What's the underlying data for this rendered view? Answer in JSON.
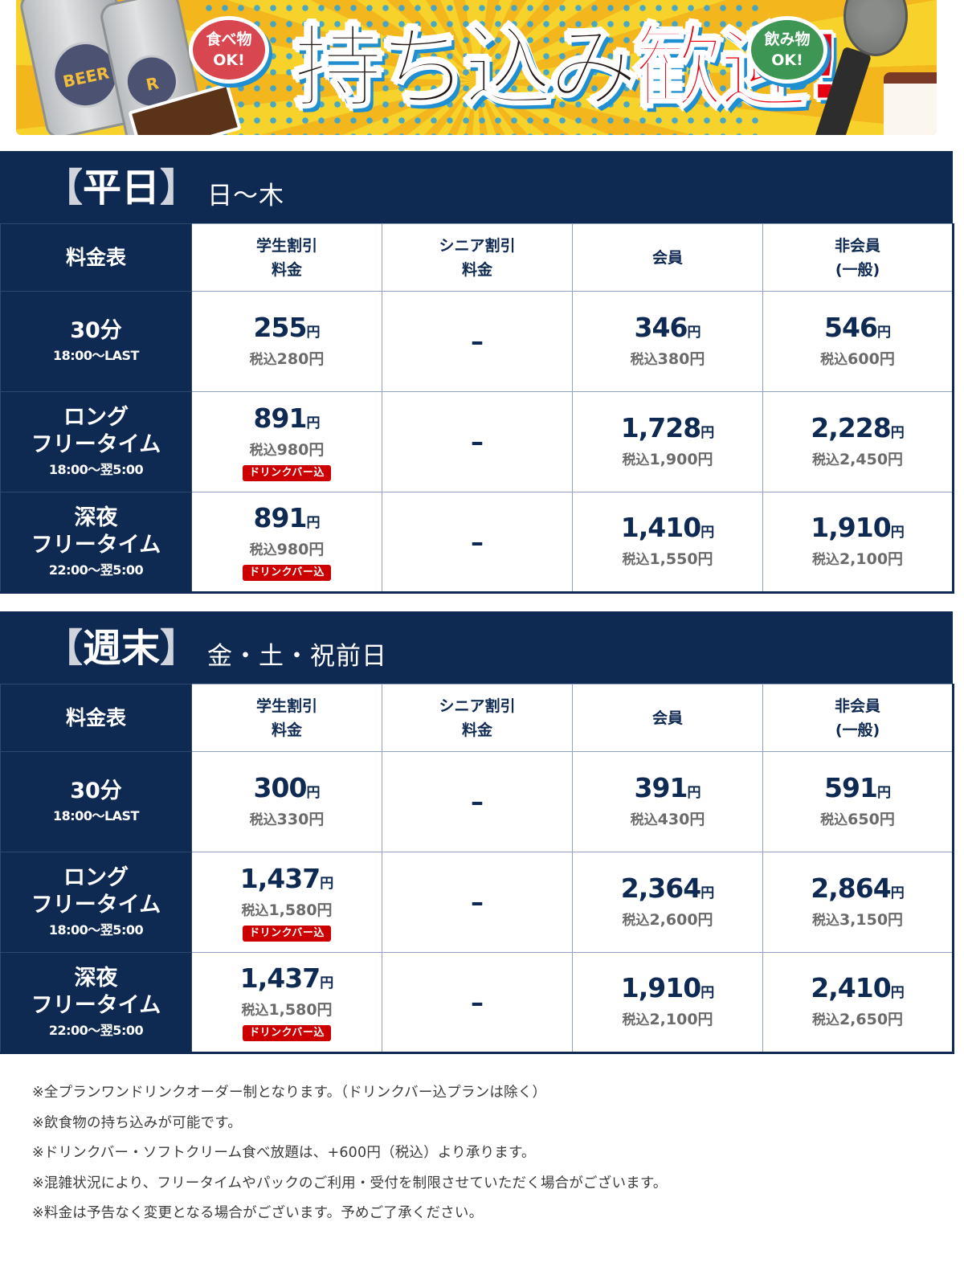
{
  "banner": {
    "headline_black": "持ち込み",
    "headline_red": "歓迎!",
    "bubble_food": [
      "食べ物",
      "OK!"
    ],
    "bubble_drink": [
      "飲み物",
      "OK!"
    ],
    "can_label": "BEER",
    "colors": {
      "navy": "#0f2a52",
      "red": "#e60012",
      "yellow": "#f7d22b",
      "blue_dots": "#2aa1dd",
      "food_bubble": "#d8474f",
      "drink_bubble": "#3d9654"
    }
  },
  "columns": {
    "corner": "料金表",
    "student": [
      "学生割引",
      "料金"
    ],
    "senior": [
      "シニア割引",
      "料金"
    ],
    "member": "会員",
    "nonmember": [
      "非会員",
      "(一般)"
    ]
  },
  "tax_prefix": "税込",
  "yen": "円",
  "drinkbar_badge": "ドリンクバー込",
  "dash": "–",
  "weekday": {
    "title_open": "【",
    "title": "平日",
    "title_close": "】",
    "days": "日～木",
    "rows": [
      {
        "name": [
          "30分"
        ],
        "time": "18:00～LAST",
        "student": {
          "price": "255",
          "tax": "280"
        },
        "senior": null,
        "member": {
          "price": "346",
          "tax": "380"
        },
        "nonmember": {
          "price": "546",
          "tax": "600"
        },
        "badge": false
      },
      {
        "name": [
          "ロング",
          "フリータイム"
        ],
        "time": "18:00～翌5:00",
        "student": {
          "price": "891",
          "tax": "980"
        },
        "senior": null,
        "member": {
          "price": "1,728",
          "tax": "1,900"
        },
        "nonmember": {
          "price": "2,228",
          "tax": "2,450"
        },
        "badge": true
      },
      {
        "name": [
          "深夜",
          "フリータイム"
        ],
        "time": "22:00～翌5:00",
        "student": {
          "price": "891",
          "tax": "980"
        },
        "senior": null,
        "member": {
          "price": "1,410",
          "tax": "1,550"
        },
        "nonmember": {
          "price": "1,910",
          "tax": "2,100"
        },
        "badge": true
      }
    ]
  },
  "weekend": {
    "title_open": "【",
    "title": "週末",
    "title_close": "】",
    "days": "金・土・祝前日",
    "rows": [
      {
        "name": [
          "30分"
        ],
        "time": "18:00～LAST",
        "student": {
          "price": "300",
          "tax": "330"
        },
        "senior": null,
        "member": {
          "price": "391",
          "tax": "430"
        },
        "nonmember": {
          "price": "591",
          "tax": "650"
        },
        "badge": false
      },
      {
        "name": [
          "ロング",
          "フリータイム"
        ],
        "time": "18:00～翌5:00",
        "student": {
          "price": "1,437",
          "tax": "1,580"
        },
        "senior": null,
        "member": {
          "price": "2,364",
          "tax": "2,600"
        },
        "nonmember": {
          "price": "2,864",
          "tax": "3,150"
        },
        "badge": true
      },
      {
        "name": [
          "深夜",
          "フリータイム"
        ],
        "time": "22:00～翌5:00",
        "student": {
          "price": "1,437",
          "tax": "1,580"
        },
        "senior": null,
        "member": {
          "price": "1,910",
          "tax": "2,100"
        },
        "nonmember": {
          "price": "2,410",
          "tax": "2,650"
        },
        "badge": true
      }
    ]
  },
  "notes": [
    "※全プランワンドリンクオーダー制となります。（ドリンクバー込プランは除く）",
    "※飲食物の持ち込みが可能です。",
    "※ドリンクバー・ソフトクリーム食べ放題は、+600円（税込）より承ります。",
    "※混雑状況により、フリータイムやパックのご利用・受付を制限させていただく場合がございます。",
    "※料金は予告なく変更となる場合がございます。予めご了承ください。"
  ]
}
